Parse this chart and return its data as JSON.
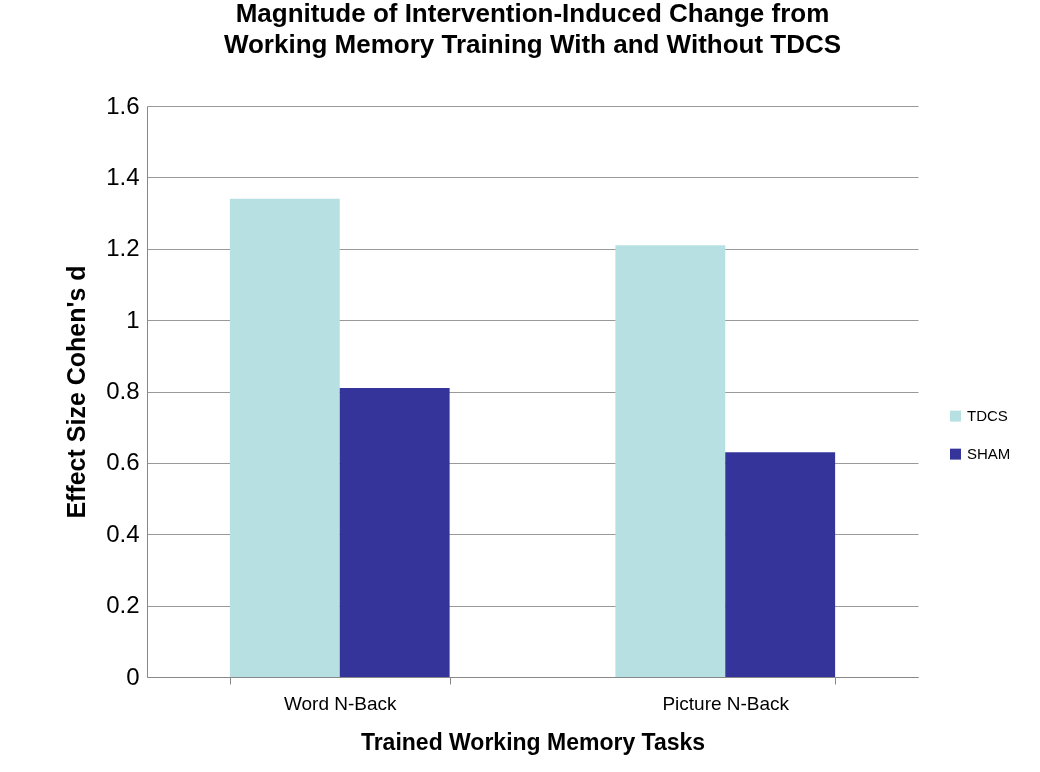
{
  "chart_data": {
    "type": "bar",
    "title": "Magnitude of Intervention-Induced Change from\nWorking Memory Training With and Without TDCS",
    "xlabel": "Trained Working Memory Tasks",
    "ylabel": "Effect Size   Cohen's d",
    "categories": [
      "Word N-Back",
      "Picture N-Back"
    ],
    "series": [
      {
        "name": "TDCS",
        "color": "#b7e0e3",
        "values": [
          1.34,
          1.21
        ]
      },
      {
        "name": "SHAM",
        "color": "#35349a",
        "values": [
          0.81,
          0.63
        ]
      }
    ],
    "ylim": [
      0,
      1.6
    ],
    "yticks": [
      0,
      0.2,
      0.4,
      0.6,
      0.8,
      1,
      1.2,
      1.4,
      1.6
    ],
    "grid": "y",
    "legend": "right"
  }
}
